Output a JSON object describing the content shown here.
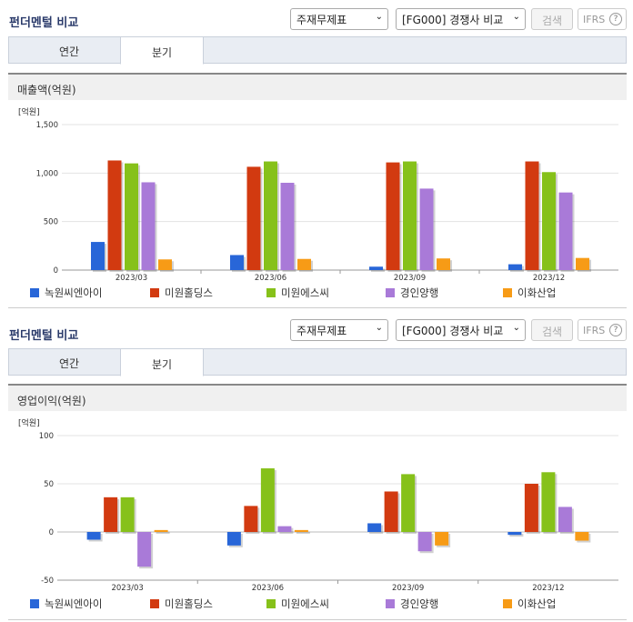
{
  "colors": [
    "#2866d8",
    "#d23a10",
    "#86c11a",
    "#a97ad8",
    "#f79b16"
  ],
  "panels": [
    {
      "title": "펀더멘털 비교",
      "statement_select": "주재무제표",
      "compare_select": "[FG000] 경쟁사 비교",
      "search_label": "검색",
      "ifrs_label": "IFRS",
      "help_glyph": "?",
      "tabs": [
        "연간",
        "분기"
      ],
      "active_tab": 1,
      "subtitle": "매출액(억원)"
    },
    {
      "title": "펀더멘털 비교",
      "statement_select": "주재무제표",
      "compare_select": "[FG000] 경쟁사 비교",
      "search_label": "검색",
      "ifrs_label": "IFRS",
      "help_glyph": "?",
      "tabs": [
        "연간",
        "분기"
      ],
      "active_tab": 1,
      "subtitle": "영업이익(억원)"
    }
  ],
  "chart_data": [
    {
      "type": "bar",
      "title": "매출액(억원)",
      "unit_label": "[억원]",
      "categories": [
        "2023/03",
        "2023/06",
        "2023/09",
        "2023/12"
      ],
      "ylim": [
        0,
        1500
      ],
      "yticks": [
        0,
        500,
        1000,
        1500
      ],
      "ytick_labels": [
        "0",
        "500",
        "1,000",
        "1,500"
      ],
      "legend": "bottom",
      "series": [
        {
          "name": "녹원씨엔아이",
          "values": [
            290,
            155,
            35,
            60
          ]
        },
        {
          "name": "미원홀딩스",
          "values": [
            1130,
            1065,
            1110,
            1120
          ]
        },
        {
          "name": "미원에스씨",
          "values": [
            1100,
            1120,
            1120,
            1010
          ]
        },
        {
          "name": "경인양행",
          "values": [
            905,
            900,
            840,
            800
          ]
        },
        {
          "name": "이화산업",
          "values": [
            110,
            115,
            120,
            125
          ]
        }
      ]
    },
    {
      "type": "bar",
      "title": "영업이익(억원)",
      "unit_label": "[억원]",
      "categories": [
        "2023/03",
        "2023/06",
        "2023/09",
        "2023/12"
      ],
      "ylim": [
        -50,
        100
      ],
      "yticks": [
        -50,
        0,
        50,
        100
      ],
      "ytick_labels": [
        "-50",
        "0",
        "50",
        "100"
      ],
      "legend": "bottom",
      "series": [
        {
          "name": "녹원씨엔아이",
          "values": [
            -8,
            -14,
            9,
            -3
          ]
        },
        {
          "name": "미원홀딩스",
          "values": [
            36,
            27,
            42,
            50
          ]
        },
        {
          "name": "미원에스씨",
          "values": [
            36,
            66,
            60,
            62
          ]
        },
        {
          "name": "경인양행",
          "values": [
            -36,
            6,
            -20,
            26
          ]
        },
        {
          "name": "이화산업",
          "values": [
            2,
            2,
            -14,
            -9
          ]
        }
      ]
    }
  ]
}
